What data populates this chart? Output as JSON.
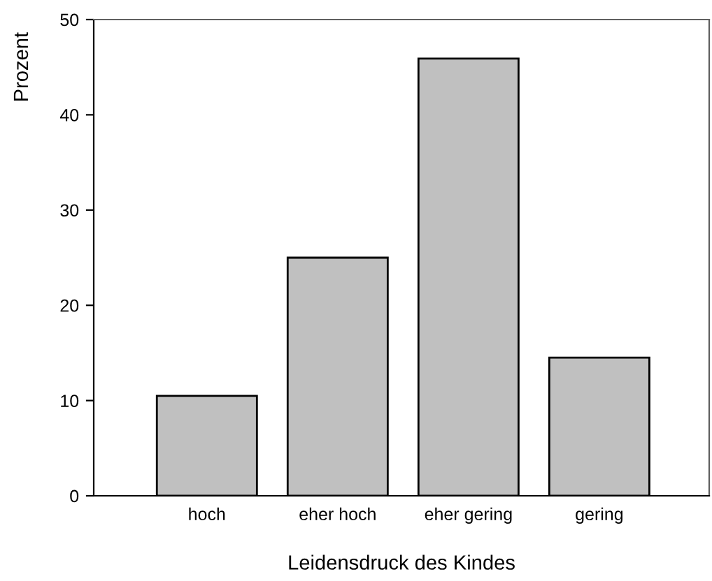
{
  "chart_data": {
    "type": "bar",
    "xlabel": "Leidensdruck des Kindes",
    "ylabel": "Prozent",
    "categories": [
      "hoch",
      "eher hoch",
      "eher gering",
      "gering"
    ],
    "values": [
      10.5,
      25.0,
      45.9,
      14.5
    ],
    "color": "#c0c0c0",
    "ylim": [
      0,
      50
    ],
    "yticks": [
      0,
      10,
      20,
      30,
      40,
      50
    ],
    "grid": false
  }
}
